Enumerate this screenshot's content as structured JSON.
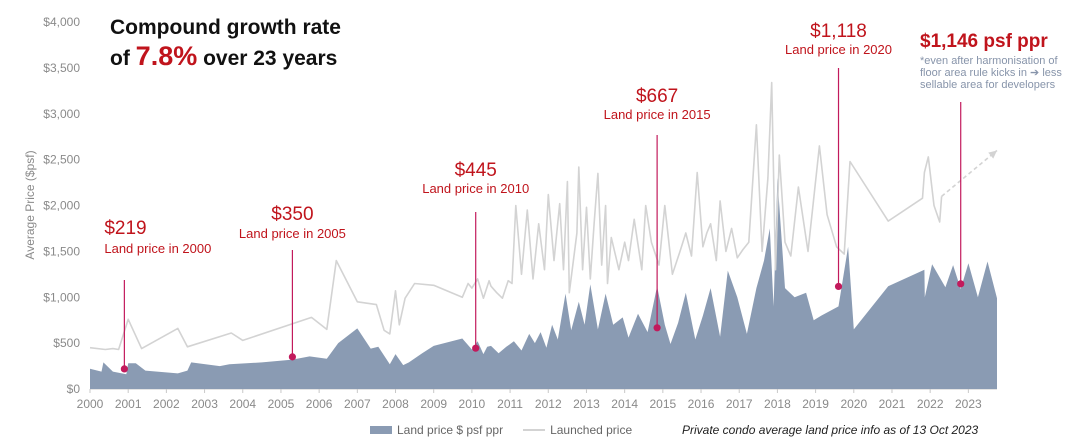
{
  "chart_data": {
    "type": "area",
    "title_line1": "Compound growth rate",
    "title_line2_prefix": "of",
    "title_highlight": "7.8%",
    "title_line2_suffix": "over 23 years",
    "ylabel": "Average Price ($psf)",
    "ylim": [
      0,
      4000
    ],
    "xlim": [
      2000,
      2023.75
    ],
    "y_ticks": [
      "$0",
      "$500",
      "$1,000",
      "$1,500",
      "$2,000",
      "$2,500",
      "$3,000",
      "$3,500",
      "$4,000"
    ],
    "y_tick_values": [
      0,
      500,
      1000,
      1500,
      2000,
      2500,
      3000,
      3500,
      4000
    ],
    "x_ticks": [
      "2000",
      "2001",
      "2002",
      "2003",
      "2004",
      "2005",
      "2006",
      "2007",
      "2008",
      "2009",
      "2010",
      "2011",
      "2012",
      "2013",
      "2014",
      "2015",
      "2016",
      "2017",
      "2018",
      "2019",
      "2020",
      "2021",
      "2022",
      "2023"
    ],
    "grid": false,
    "series": [
      {
        "name": "Land price $ psf ppr",
        "kind": "area",
        "color": "#8a9bb3",
        "x": [
          2000.0,
          2000.3,
          2000.35,
          2000.6,
          2000.95,
          2001.0,
          2001.2,
          2001.45,
          2002.3,
          2002.55,
          2002.65,
          2003.4,
          2003.65,
          2004.5,
          2005.3,
          2005.75,
          2006.2,
          2006.5,
          2007.0,
          2007.35,
          2007.55,
          2007.85,
          2008.0,
          2008.2,
          2008.35,
          2008.7,
          2009.0,
          2009.75,
          2010.0,
          2010.15,
          2010.3,
          2010.4,
          2010.5,
          2010.7,
          2010.9,
          2011.1,
          2011.3,
          2011.5,
          2011.65,
          2011.8,
          2011.95,
          2012.1,
          2012.25,
          2012.45,
          2012.6,
          2012.8,
          2012.95,
          2013.1,
          2013.3,
          2013.5,
          2013.7,
          2013.95,
          2014.1,
          2014.35,
          2014.6,
          2014.85,
          2015.05,
          2015.2,
          2015.4,
          2015.6,
          2015.85,
          2016.05,
          2016.25,
          2016.5,
          2016.7,
          2016.95,
          2017.2,
          2017.45,
          2017.65,
          2017.8,
          2017.9,
          2018.0,
          2018.2,
          2018.45,
          2018.75,
          2018.95,
          2019.15,
          2019.6,
          2019.85,
          2020.0,
          2020.9,
          2021.85,
          2021.86,
          2022.05,
          2022.4,
          2022.6,
          2022.8,
          2023.0,
          2023.25,
          2023.5,
          2023.75
        ],
        "y": [
          220,
          190,
          290,
          190,
          160,
          280,
          280,
          200,
          170,
          200,
          290,
          250,
          270,
          290,
          320,
          355,
          330,
          500,
          660,
          440,
          460,
          270,
          380,
          260,
          290,
          390,
          470,
          550,
          430,
          520,
          380,
          460,
          470,
          390,
          460,
          520,
          420,
          600,
          500,
          620,
          450,
          700,
          540,
          1040,
          640,
          950,
          700,
          1140,
          650,
          1040,
          700,
          780,
          560,
          820,
          620,
          1120,
          700,
          490,
          720,
          1050,
          540,
          800,
          1100,
          570,
          1290,
          1000,
          600,
          1100,
          1400,
          1750,
          900,
          2300,
          1100,
          1000,
          1050,
          750,
          800,
          900,
          1550,
          650,
          1120,
          1300,
          1000,
          1360,
          1110,
          1350,
          1090,
          1370,
          1000,
          1390,
          990
        ]
      },
      {
        "name": "Launched price",
        "kind": "line",
        "color": "#d3d3d3",
        "x": [
          2000.0,
          2000.4,
          2000.6,
          2000.75,
          2001.0,
          2001.35,
          2002.3,
          2002.55,
          2003.7,
          2004.0,
          2005.8,
          2006.2,
          2006.45,
          2007.0,
          2007.5,
          2007.7,
          2007.85,
          2008.0,
          2008.1,
          2008.25,
          2008.5,
          2009.0,
          2009.75,
          2009.9,
          2010.0,
          2010.15,
          2010.3,
          2010.45,
          2010.5,
          2010.65,
          2010.8,
          2010.95,
          2011.05,
          2011.15,
          2011.3,
          2011.45,
          2011.6,
          2011.75,
          2011.9,
          2012.0,
          2012.15,
          2012.3,
          2012.4,
          2012.5,
          2012.55,
          2012.75,
          2012.8,
          2012.9,
          2013.0,
          2013.1,
          2013.2,
          2013.3,
          2013.4,
          2013.5,
          2013.55,
          2013.65,
          2013.85,
          2014.0,
          2014.1,
          2014.25,
          2014.45,
          2014.55,
          2014.7,
          2014.9,
          2015.05,
          2015.25,
          2015.45,
          2015.6,
          2015.75,
          2015.9,
          2016.05,
          2016.15,
          2016.25,
          2016.4,
          2016.5,
          2016.65,
          2016.8,
          2016.95,
          2017.1,
          2017.25,
          2017.45,
          2017.6,
          2017.75,
          2017.85,
          2017.95,
          2018.05,
          2018.2,
          2018.35,
          2018.55,
          2018.8,
          2019.1,
          2019.3,
          2019.55,
          2019.75,
          2019.9,
          2020.9,
          2021.8,
          2021.85,
          2021.95,
          2022.1,
          2022.25,
          2022.3
        ],
        "y": [
          450,
          430,
          440,
          430,
          760,
          440,
          660,
          460,
          610,
          530,
          780,
          650,
          1400,
          950,
          920,
          640,
          600,
          1070,
          700,
          990,
          1150,
          1130,
          1000,
          1150,
          1100,
          1200,
          990,
          1180,
          1120,
          1050,
          990,
          1180,
          1150,
          2000,
          1250,
          1950,
          1200,
          1800,
          1300,
          2120,
          1400,
          2020,
          1300,
          2260,
          1050,
          1700,
          2420,
          1300,
          1980,
          1200,
          1800,
          2350,
          1350,
          2000,
          1150,
          1650,
          1300,
          1600,
          1400,
          1850,
          1300,
          2000,
          1600,
          1350,
          2000,
          1250,
          1500,
          1700,
          1450,
          2360,
          1550,
          1700,
          1800,
          1400,
          2050,
          1500,
          1750,
          1430,
          1520,
          1600,
          2880,
          1500,
          2300,
          3340,
          1300,
          2550,
          1600,
          1450,
          2200,
          1500,
          2650,
          1900,
          1550,
          1470,
          2480,
          1830,
          2080,
          2360,
          2530,
          2000,
          1820,
          2100
        ]
      }
    ],
    "projection": {
      "from": [
        2022.3,
        2100
      ],
      "to": [
        2023.75,
        2600
      ]
    },
    "annotations": [
      {
        "year": 2000.9,
        "price": 219,
        "value": "$219",
        "label": "Land price in 2000"
      },
      {
        "year": 2005.3,
        "price": 350,
        "value": "$350",
        "label": "Land price in 2005"
      },
      {
        "year": 2010.1,
        "price": 445,
        "value": "$445",
        "label": "Land price in 2010"
      },
      {
        "year": 2014.85,
        "price": 667,
        "value": "$667",
        "label": "Land price in 2015"
      },
      {
        "year": 2019.6,
        "price": 1118,
        "value": "$1,118",
        "label": "Land price in 2020"
      },
      {
        "year": 2022.8,
        "price": 1146,
        "value": "",
        "label": ""
      }
    ],
    "highlight": {
      "value": "$1,146 psf ppr",
      "note": "*even after harmonisation of floor area rule kicks in ➔ less sellable area for developers"
    },
    "legend": {
      "area": "Land price $ psf ppr",
      "line": "Launched price",
      "placement": "bottom"
    },
    "source": "Private condo average land price info as of 13 Oct 2023",
    "colors": {
      "annotation": "#c0141c",
      "marker": "#c21a5c",
      "axis": "#c8c8c8"
    }
  }
}
